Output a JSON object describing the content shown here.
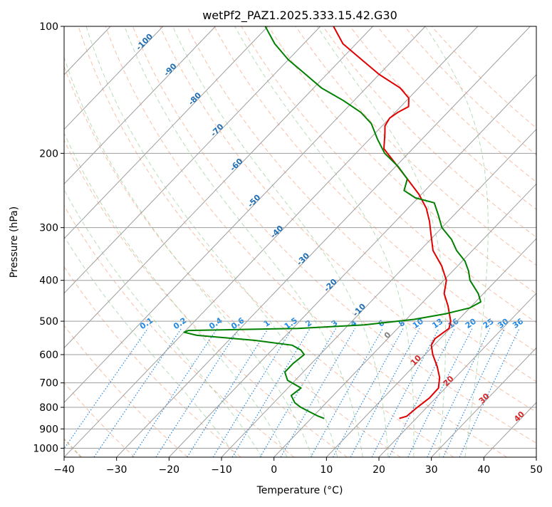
{
  "chart_data": {
    "type": "line",
    "title": "wetPf2_PAZ1.2025.333.15.42.G30",
    "xlabel": "Temperature (°C)",
    "ylabel": "Pressure (hPa)",
    "xlim": [
      -40,
      50
    ],
    "ylim": [
      1050,
      100
    ],
    "y_scale": "log",
    "skew": true,
    "grid": true,
    "x_ticks": [
      -40,
      -30,
      -20,
      -10,
      0,
      10,
      20,
      30,
      40,
      50
    ],
    "x_tick_labels": [
      "−40",
      "−30",
      "−20",
      "−10",
      "0",
      "10",
      "20",
      "30",
      "40",
      "50"
    ],
    "y_ticks": [
      100,
      200,
      300,
      400,
      500,
      600,
      700,
      800,
      900,
      1000
    ],
    "y_tick_labels": [
      "100",
      "200",
      "300",
      "400",
      "500",
      "600",
      "700",
      "800",
      "900",
      "1000"
    ],
    "series": [
      {
        "role": "temperature",
        "color": "#e00000",
        "points": [
          [
            850,
            16.8
          ],
          [
            840,
            17.8
          ],
          [
            800,
            18.2
          ],
          [
            760,
            18.8
          ],
          [
            720,
            18.7
          ],
          [
            680,
            17.0
          ],
          [
            640,
            14.5
          ],
          [
            600,
            11.5
          ],
          [
            570,
            9.5
          ],
          [
            550,
            9.0
          ],
          [
            520,
            9.8
          ],
          [
            500,
            8.8
          ],
          [
            460,
            5.5
          ],
          [
            430,
            2.5
          ],
          [
            400,
            0.5
          ],
          [
            370,
            -3.0
          ],
          [
            340,
            -7.5
          ],
          [
            310,
            -11.0
          ],
          [
            290,
            -13.5
          ],
          [
            270,
            -16.5
          ],
          [
            250,
            -20.5
          ],
          [
            230,
            -25.5
          ],
          [
            210,
            -31.0
          ],
          [
            195,
            -35.5
          ],
          [
            180,
            -38.0
          ],
          [
            172,
            -39.5
          ],
          [
            165,
            -40.0
          ],
          [
            160,
            -39.5
          ],
          [
            155,
            -38.5
          ],
          [
            148,
            -40.0
          ],
          [
            140,
            -43.5
          ],
          [
            130,
            -50.0
          ],
          [
            120,
            -56.0
          ],
          [
            110,
            -62.5
          ],
          [
            100,
            -67.5
          ]
        ]
      },
      {
        "role": "dewpoint",
        "color": "#008000",
        "points": [
          [
            850,
            2.5
          ],
          [
            840,
            1.0
          ],
          [
            820,
            -1.5
          ],
          [
            800,
            -4.0
          ],
          [
            780,
            -6.0
          ],
          [
            750,
            -8.0
          ],
          [
            720,
            -7.5
          ],
          [
            690,
            -11.5
          ],
          [
            660,
            -13.5
          ],
          [
            630,
            -13.5
          ],
          [
            600,
            -13.0
          ],
          [
            585,
            -14.5
          ],
          [
            570,
            -17.0
          ],
          [
            555,
            -25.0
          ],
          [
            540,
            -37.0
          ],
          [
            531,
            -40.0
          ],
          [
            526,
            -39.5
          ],
          [
            520,
            -19.0
          ],
          [
            510,
            -7.0
          ],
          [
            495,
            1.5
          ],
          [
            480,
            6.5
          ],
          [
            465,
            10.0
          ],
          [
            450,
            11.0
          ],
          [
            430,
            9.0
          ],
          [
            400,
            5.0
          ],
          [
            380,
            3.0
          ],
          [
            360,
            0.5
          ],
          [
            340,
            -3.0
          ],
          [
            320,
            -6.0
          ],
          [
            300,
            -10.0
          ],
          [
            280,
            -13.0
          ],
          [
            262,
            -16.0
          ],
          [
            255,
            -20.5
          ],
          [
            245,
            -24.0
          ],
          [
            230,
            -25.5
          ],
          [
            215,
            -29.5
          ],
          [
            200,
            -34.5
          ],
          [
            185,
            -38.5
          ],
          [
            170,
            -42.5
          ],
          [
            160,
            -46.5
          ],
          [
            150,
            -52.0
          ],
          [
            140,
            -58.5
          ],
          [
            130,
            -64.0
          ],
          [
            120,
            -70.0
          ],
          [
            110,
            -75.5
          ],
          [
            100,
            -80.5
          ]
        ]
      }
    ],
    "background_lines": {
      "dry_adiabats": [
        -30,
        -20,
        -10,
        0,
        10,
        20,
        30,
        40,
        50,
        60,
        70,
        80,
        90,
        100,
        110,
        120,
        130,
        140,
        150,
        160
      ],
      "moist_adiabats": [
        -10,
        -5,
        0,
        5,
        10,
        15,
        20,
        25,
        30,
        35
      ],
      "mixing_ratios": [
        0.1,
        0.2,
        0.4,
        0.6,
        1,
        1.5,
        2,
        3,
        4,
        6,
        8,
        10,
        13,
        16,
        20,
        25,
        30,
        36
      ],
      "isotherms": [
        -100,
        -90,
        -80,
        -70,
        -60,
        -50,
        -40,
        -30,
        -20,
        -10,
        0,
        10,
        20,
        30,
        40,
        50
      ],
      "dry_adiabat_color": "#f4a582",
      "moist_adiabat_color": "#7fbf7f",
      "mixing_ratio_color": "#1e88e5",
      "isotherm_color": "#9e9e9e",
      "isotherm_label_color": "#1f6fb5",
      "zero_isotherm_label_color": "#808080",
      "positive_isotherm_label_color": "#d62728",
      "mixing_ratio_label_color": "#1e88e5",
      "cbar_line_color": "#d2b48c"
    },
    "isotherm_labels": [
      {
        "text": "-100",
        "T": -100,
        "p": 110
      },
      {
        "text": "-90",
        "T": -90,
        "p": 128
      },
      {
        "text": "-80",
        "T": -80,
        "p": 150
      },
      {
        "text": "-70",
        "T": -70,
        "p": 178
      },
      {
        "text": "-60",
        "T": -60,
        "p": 215
      },
      {
        "text": "-50",
        "T": -50,
        "p": 262
      },
      {
        "text": "-40",
        "T": -40,
        "p": 310
      },
      {
        "text": "-30",
        "T": -30,
        "p": 360
      },
      {
        "text": "-20",
        "T": -20,
        "p": 415
      },
      {
        "text": "-10",
        "T": -10,
        "p": 475
      },
      {
        "text": "0",
        "T": 0,
        "p": 545
      },
      {
        "text": "10",
        "T": 10,
        "p": 625
      },
      {
        "text": "20",
        "T": 20,
        "p": 700
      },
      {
        "text": "30",
        "T": 30,
        "p": 770
      },
      {
        "text": "40",
        "T": 40,
        "p": 850
      }
    ],
    "mixing_ratio_labels": [
      "0.1",
      "0.2",
      "0.4",
      "0.6",
      "1",
      "1.5",
      "2",
      "3",
      "4",
      "6",
      "8",
      "10",
      "13",
      "16",
      "20",
      "25",
      "30",
      "36"
    ]
  }
}
